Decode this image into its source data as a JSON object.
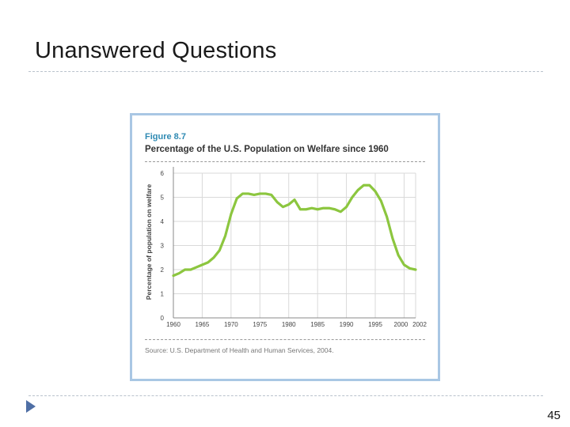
{
  "slide": {
    "title": "Unanswered Questions",
    "page_number": "45"
  },
  "figure": {
    "label": "Figure 8.7",
    "heading": "Percentage of the U.S. Population on Welfare since 1960",
    "source": "Source: U.S. Department of Health and Human Services, 2004."
  },
  "colors": {
    "line": "#8cc63f",
    "frame": "#a9c7e4",
    "figure_label": "#2f8ab3",
    "nav_arrow": "#4f6fa5"
  },
  "chart_data": {
    "type": "line",
    "title": "Percentage of the U.S. Population on Welfare since 1960",
    "xlabel": "",
    "ylabel": "Percentage of population on welfare",
    "ylim": [
      0,
      6
    ],
    "xlim": [
      1960,
      2002
    ],
    "grid": true,
    "x_ticks": [
      "1960",
      "1965",
      "1970",
      "1975",
      "1980",
      "1985",
      "1990",
      "1995",
      "2000",
      "2002"
    ],
    "y_ticks": [
      "0",
      "1",
      "2",
      "3",
      "4",
      "5",
      "6"
    ],
    "series": [
      {
        "x": [
          1960,
          1961,
          1962,
          1963,
          1964,
          1965,
          1966,
          1967,
          1968,
          1969,
          1970,
          1971,
          1972,
          1973,
          1974,
          1975,
          1976,
          1977,
          1978,
          1979,
          1980,
          1981,
          1982,
          1983,
          1984,
          1985,
          1986,
          1987,
          1988,
          1989,
          1990,
          1991,
          1992,
          1993,
          1994,
          1995,
          1996,
          1997,
          1998,
          1999,
          2000,
          2001,
          2002
        ],
        "values": [
          1.75,
          1.85,
          2.0,
          2.0,
          2.1,
          2.2,
          2.3,
          2.5,
          2.8,
          3.4,
          4.3,
          4.95,
          5.15,
          5.15,
          5.1,
          5.15,
          5.15,
          5.1,
          4.8,
          4.6,
          4.7,
          4.9,
          4.5,
          4.5,
          4.55,
          4.5,
          4.55,
          4.55,
          4.5,
          4.4,
          4.6,
          5.0,
          5.3,
          5.5,
          5.5,
          5.25,
          4.85,
          4.2,
          3.3,
          2.6,
          2.2,
          2.05,
          2.0
        ]
      }
    ]
  }
}
